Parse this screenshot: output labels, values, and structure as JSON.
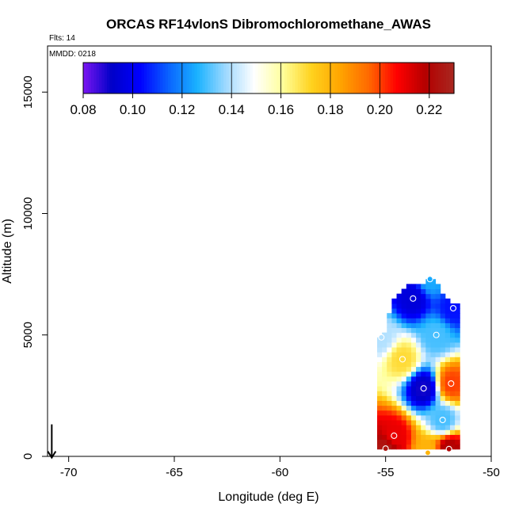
{
  "chart_data": {
    "type": "heatmap",
    "title": "ORCAS RF14vlonS Dibromochloromethane_AWAS",
    "subtitle_flts": "Flts: 14",
    "subtitle_mmdd": "MMDD: 0218",
    "xlabel": "Longitude (deg E)",
    "ylabel": "Altitude (m)",
    "xlim": [
      -71,
      -50
    ],
    "ylim": [
      0,
      16900
    ],
    "x_ticks": [
      -70,
      -65,
      -60,
      -55,
      -50
    ],
    "x_tick_labels": [
      "-70",
      "-65",
      "-60",
      "-55",
      "-50"
    ],
    "y_ticks": [
      0,
      5000,
      10000,
      15000
    ],
    "y_tick_labels": [
      "0",
      "5000",
      "10000",
      "15000"
    ],
    "colorbar": {
      "range": [
        0.08,
        0.23
      ],
      "ticks": [
        0.08,
        0.1,
        0.12,
        0.14,
        0.16,
        0.18,
        0.2,
        0.22
      ],
      "tick_labels": [
        "0.08",
        "0.10",
        "0.12",
        "0.14",
        "0.16",
        "0.18",
        "0.20",
        "0.22"
      ],
      "colors": [
        "#7b16f2",
        "#0000c8",
        "#0000ff",
        "#0a64ff",
        "#1ab2ff",
        "#9fd9ff",
        "#ffffff",
        "#ffff9a",
        "#ffd21e",
        "#ffa500",
        "#ff6a00",
        "#ff0000",
        "#b40000",
        "#a82820"
      ]
    },
    "arrow_marker": {
      "lon": -70.8,
      "alt": 600
    },
    "samples": [
      {
        "lon": -52.9,
        "alt": 7300,
        "value": 0.125
      },
      {
        "lon": -53.7,
        "alt": 6500,
        "value": 0.095
      },
      {
        "lon": -51.8,
        "alt": 6100,
        "value": 0.105
      },
      {
        "lon": -52.6,
        "alt": 5000,
        "value": 0.13
      },
      {
        "lon": -55.2,
        "alt": 4900,
        "value": 0.14
      },
      {
        "lon": -54.2,
        "alt": 4000,
        "value": 0.17
      },
      {
        "lon": -51.9,
        "alt": 3000,
        "value": 0.2
      },
      {
        "lon": -53.2,
        "alt": 2800,
        "value": 0.09
      },
      {
        "lon": -52.3,
        "alt": 1500,
        "value": 0.13
      },
      {
        "lon": -54.6,
        "alt": 850,
        "value": 0.21
      },
      {
        "lon": -55.0,
        "alt": 320,
        "value": 0.225
      },
      {
        "lon": -53.0,
        "alt": 150,
        "value": 0.18
      },
      {
        "lon": -52.0,
        "alt": 300,
        "value": 0.22
      }
    ]
  }
}
